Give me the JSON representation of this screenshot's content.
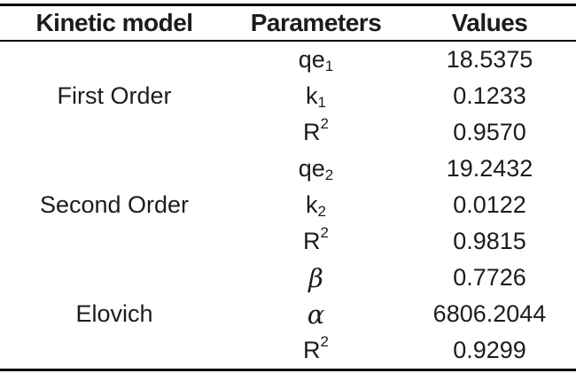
{
  "page": {
    "background_color": "#ffffff",
    "text_color": "#1c1c1c",
    "rule_color": "#000000"
  },
  "table": {
    "headers": [
      {
        "label": "Kinetic model"
      },
      {
        "label": "Parameters"
      },
      {
        "label": "Values"
      }
    ],
    "groups": [
      {
        "model": "First Order",
        "rows": [
          {
            "param": {
              "base": "qe",
              "script": "1",
              "pos": "sub",
              "greek": false
            },
            "value": "18.5375"
          },
          {
            "param": {
              "base": "k",
              "script": "1",
              "pos": "sub",
              "greek": false
            },
            "value": "0.1233"
          },
          {
            "param": {
              "base": "R",
              "script": "2",
              "pos": "sup",
              "greek": false
            },
            "value": "0.9570"
          }
        ]
      },
      {
        "model": "Second Order",
        "rows": [
          {
            "param": {
              "base": "qe",
              "script": "2",
              "pos": "sub",
              "greek": false
            },
            "value": "19.2432"
          },
          {
            "param": {
              "base": "k",
              "script": "2",
              "pos": "sub",
              "greek": false
            },
            "value": "0.0122"
          },
          {
            "param": {
              "base": "R",
              "script": "2",
              "pos": "sup",
              "greek": false
            },
            "value": "0.9815"
          }
        ]
      },
      {
        "model": "Elovich",
        "rows": [
          {
            "param": {
              "base": "β",
              "script": "",
              "pos": "",
              "greek": true
            },
            "value": "0.7726"
          },
          {
            "param": {
              "base": "α",
              "script": "",
              "pos": "",
              "greek": true
            },
            "value": "6806.2044"
          },
          {
            "param": {
              "base": "R",
              "script": "2",
              "pos": "sup",
              "greek": false
            },
            "value": "0.9299"
          }
        ]
      }
    ]
  }
}
